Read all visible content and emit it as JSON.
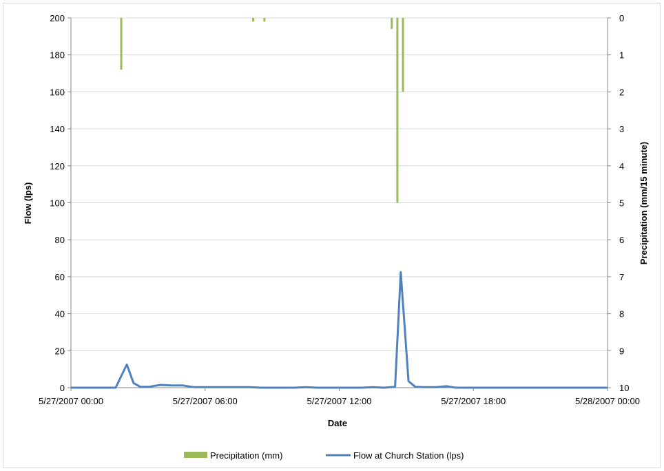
{
  "chart_data": {
    "type": "bar+line",
    "title": "",
    "xlabel": "Date",
    "ylabel_left": "Flow (lps)",
    "ylabel_right": "Precipitation (mm/15 minute)",
    "x_ticks": [
      "5/27/2007 00:00",
      "5/27/2007 06:00",
      "5/27/2007 12:00",
      "5/27/2007 18:00",
      "5/28/2007 00:00"
    ],
    "xlim_hours": [
      0,
      24
    ],
    "ylim_left": [
      0,
      200
    ],
    "y_ticks_left": [
      "0",
      "20",
      "40",
      "60",
      "80",
      "100",
      "120",
      "140",
      "160",
      "180",
      "200"
    ],
    "ylim_right": [
      0,
      10
    ],
    "right_axis_inverted": true,
    "y_ticks_right": [
      "0",
      "1",
      "2",
      "3",
      "4",
      "5",
      "6",
      "7",
      "8",
      "9",
      "10"
    ],
    "grid": "horizontal",
    "legend_position": "bottom",
    "colors": {
      "precipitation": "#9bbb59",
      "flow": "#4f81bd",
      "grid": "#d9d9d9",
      "axis": "#868686"
    },
    "series": [
      {
        "name": "Precipitation (mm)",
        "type": "bar",
        "axis": "right",
        "hours": [
          2.25,
          8.15,
          8.65,
          14.35,
          14.6,
          14.85
        ],
        "values": [
          1.4,
          0.1,
          0.1,
          0.3,
          5.0,
          2.0
        ]
      },
      {
        "name": "Flow at Church Station (lps)",
        "type": "line",
        "axis": "left",
        "hours": [
          0,
          1,
          2,
          2.5,
          2.8,
          3.1,
          3.5,
          4,
          4.5,
          5,
          5.5,
          6,
          7,
          8,
          8.5,
          9,
          10,
          10.5,
          11,
          12,
          13,
          13.5,
          14,
          14.5,
          14.75,
          15.1,
          15.4,
          15.8,
          16.3,
          16.8,
          17.2,
          18,
          20,
          22,
          24
        ],
        "values": [
          0,
          0,
          0,
          12.5,
          2.5,
          0.5,
          0.5,
          1.5,
          1.2,
          1.2,
          0.3,
          0.3,
          0.3,
          0.3,
          0,
          0,
          0,
          0.3,
          0,
          0,
          0,
          0.3,
          0,
          0.5,
          62.5,
          3.5,
          0.5,
          0.3,
          0.3,
          0.8,
          0,
          0,
          0,
          0,
          0
        ]
      }
    ]
  }
}
